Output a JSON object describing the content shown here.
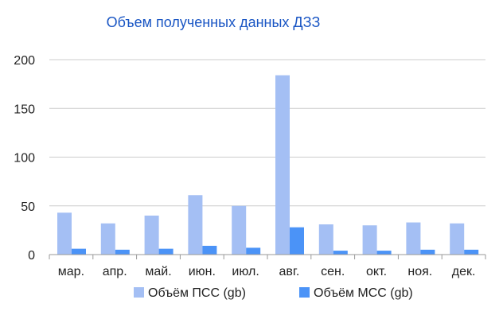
{
  "chart_data": {
    "type": "bar",
    "title": "Объем полученных данных ДЗЗ",
    "xlabel": "",
    "ylabel": "",
    "categories": [
      "мар.",
      "апр.",
      "май.",
      "июн.",
      "июл.",
      "авг.",
      "сен.",
      "окт.",
      "ноя.",
      "дек."
    ],
    "series": [
      {
        "name": "Объём ПСС (gb)",
        "values": [
          43,
          32,
          40,
          61,
          50,
          184,
          31,
          30,
          33,
          32
        ],
        "color": "#a4bff4"
      },
      {
        "name": "Объём МСС (gb)",
        "values": [
          6,
          5,
          6,
          9,
          7,
          28,
          4,
          4,
          5,
          5
        ],
        "color": "#4b93f7"
      }
    ],
    "ylim": [
      0,
      200
    ],
    "yticks": [
      0,
      50,
      100,
      150,
      200
    ],
    "grid": true,
    "legend_position": "bottom",
    "title_color": "#1a56c4",
    "grid_color": "#cccccc",
    "axis_color": "#999999"
  }
}
